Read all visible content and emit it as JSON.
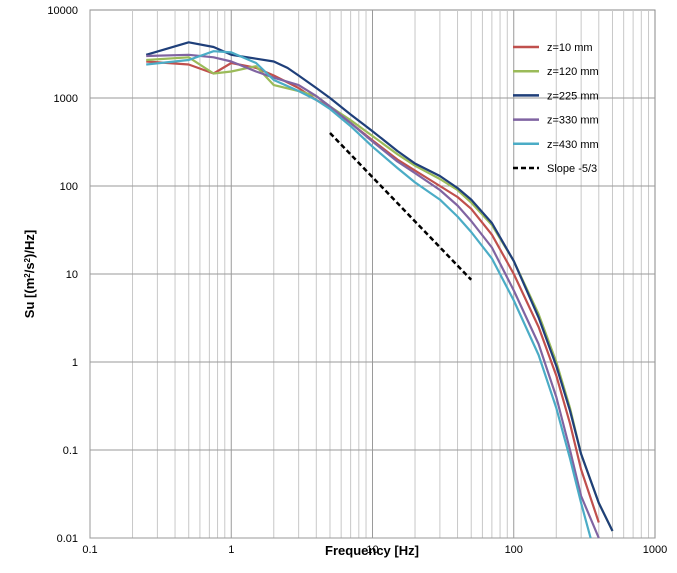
{
  "chart_data": {
    "type": "line",
    "xlabel": "Frequency [Hz]",
    "ylabel_main": "Su [(m",
    "ylabel_sup1": "2",
    "ylabel_mid": "/s",
    "ylabel_sup2": "2",
    "ylabel_end": ")/Hz]",
    "x_scale": "log",
    "y_scale": "log",
    "xlim": [
      0.1,
      1000
    ],
    "ylim": [
      0.01,
      10000
    ],
    "x_ticks": [
      "0.1",
      "1",
      "10",
      "100",
      "1000"
    ],
    "y_ticks": [
      "0.01",
      "0.1",
      "1",
      "10",
      "100",
      "1000",
      "10000"
    ],
    "grid": true,
    "legend_position": "top-right",
    "series": [
      {
        "name": "z=10 mm",
        "color": "#c0504d",
        "x": [
          0.25,
          0.5,
          0.75,
          1,
          1.5,
          2,
          3,
          4,
          5,
          7,
          10,
          15,
          20,
          30,
          40,
          50,
          70,
          100,
          150,
          200,
          250,
          300,
          400
        ],
        "y": [
          2600,
          2400,
          1900,
          2500,
          2200,
          1800,
          1300,
          950,
          780,
          520,
          330,
          200,
          150,
          100,
          75,
          55,
          28,
          10,
          2.5,
          0.7,
          0.2,
          0.06,
          0.015
        ]
      },
      {
        "name": "z=120 mm",
        "color": "#9bbb59",
        "x": [
          0.25,
          0.5,
          0.75,
          1,
          1.5,
          2,
          3,
          4,
          5,
          7,
          10,
          15,
          20,
          30,
          40,
          50,
          70,
          100,
          150,
          200,
          250,
          300,
          400,
          500
        ],
        "y": [
          2700,
          2900,
          1900,
          2000,
          2300,
          1400,
          1200,
          1050,
          800,
          560,
          370,
          230,
          170,
          120,
          90,
          65,
          36,
          14,
          3.5,
          1.0,
          0.3,
          0.09,
          0.025,
          0.012
        ]
      },
      {
        "name": "z=225 mm",
        "color": "#1f3f7a",
        "x": [
          0.25,
          0.5,
          0.75,
          1,
          1.5,
          2,
          2.5,
          3,
          4,
          5,
          7,
          10,
          15,
          20,
          30,
          40,
          50,
          70,
          100,
          150,
          200,
          250,
          300,
          400,
          500
        ],
        "y": [
          3100,
          4300,
          3800,
          3100,
          2800,
          2600,
          2200,
          1800,
          1300,
          1000,
          650,
          420,
          250,
          180,
          130,
          95,
          70,
          38,
          14,
          3.2,
          0.9,
          0.28,
          0.09,
          0.025,
          0.012
        ]
      },
      {
        "name": "z=330 mm",
        "color": "#8064a2",
        "x": [
          0.25,
          0.5,
          0.75,
          1,
          1.5,
          2,
          3,
          4,
          5,
          7,
          10,
          15,
          20,
          30,
          40,
          50,
          70,
          100,
          150,
          200,
          250,
          300,
          400
        ],
        "y": [
          3000,
          3100,
          2900,
          2600,
          2000,
          1700,
          1400,
          1050,
          800,
          520,
          320,
          190,
          140,
          90,
          60,
          40,
          20,
          6.5,
          1.6,
          0.4,
          0.1,
          0.03,
          0.01
        ]
      },
      {
        "name": "z=430 mm",
        "color": "#4bacc6",
        "x": [
          0.25,
          0.5,
          0.75,
          1,
          1.5,
          2,
          3,
          4,
          5,
          7,
          10,
          15,
          20,
          30,
          40,
          50,
          70,
          100,
          150,
          200,
          250,
          300,
          350
        ],
        "y": [
          2400,
          2700,
          3400,
          3300,
          2500,
          1600,
          1200,
          950,
          750,
          480,
          280,
          160,
          110,
          70,
          45,
          30,
          15,
          5,
          1.2,
          0.3,
          0.08,
          0.025,
          0.01
        ]
      },
      {
        "name": "Slope -5/3",
        "color": "#000000",
        "dashed": true,
        "x": [
          5,
          50
        ],
        "y": [
          400,
          8.6
        ]
      }
    ]
  }
}
